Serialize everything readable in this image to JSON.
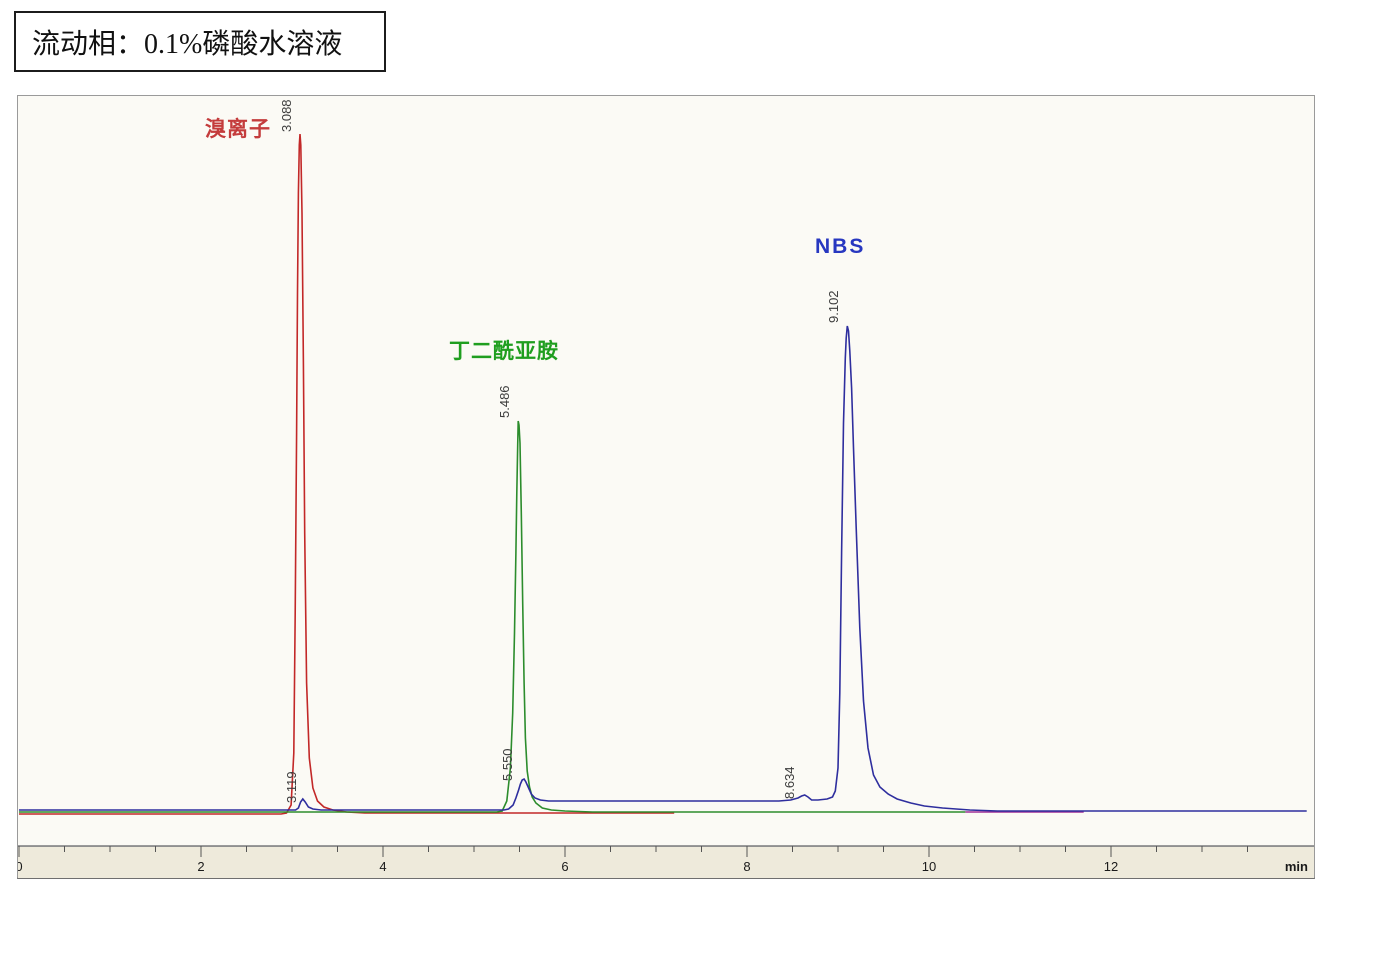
{
  "header": {
    "mobile_phase": "流动相：0.1%磷酸水溶液"
  },
  "chart_data": {
    "type": "line",
    "title": "",
    "xlabel": "min",
    "ylabel": "",
    "x_axis": {
      "range_min": 0,
      "range_max": 14.2,
      "minor_tick_step": 0.5,
      "labeled_tick_step": 2,
      "tick_labels": [
        "0",
        "2",
        "4",
        "6",
        "8",
        "10",
        "12"
      ],
      "unit_label": "min",
      "grid": "off"
    },
    "legend_position": "none",
    "series": [
      {
        "id": "bromide",
        "name": "溴离子",
        "color": "#c22828",
        "main_peak_rt_min": 3.088,
        "points": [
          [
            0,
            -1
          ],
          [
            2.88,
            -1
          ],
          [
            2.94,
            0
          ],
          [
            2.99,
            8
          ],
          [
            3.02,
            60
          ],
          [
            3.035,
            200
          ],
          [
            3.05,
            380
          ],
          [
            3.06,
            520
          ],
          [
            3.07,
            620
          ],
          [
            3.08,
            668
          ],
          [
            3.088,
            679
          ],
          [
            3.097,
            668
          ],
          [
            3.11,
            600
          ],
          [
            3.125,
            450
          ],
          [
            3.14,
            280
          ],
          [
            3.16,
            130
          ],
          [
            3.19,
            55
          ],
          [
            3.23,
            25
          ],
          [
            3.28,
            12
          ],
          [
            3.35,
            6
          ],
          [
            3.45,
            3
          ],
          [
            3.6,
            1
          ],
          [
            3.8,
            0
          ],
          [
            5.0,
            0
          ],
          [
            7.2,
            0
          ]
        ]
      },
      {
        "id": "succinimide",
        "name": "丁二酰亚胺",
        "color": "#2c8c2c",
        "main_peak_rt_min": 5.486,
        "points": [
          [
            0,
            1
          ],
          [
            5.25,
            1
          ],
          [
            5.31,
            2
          ],
          [
            5.36,
            12
          ],
          [
            5.4,
            45
          ],
          [
            5.425,
            100
          ],
          [
            5.445,
            180
          ],
          [
            5.46,
            260
          ],
          [
            5.47,
            320
          ],
          [
            5.48,
            368
          ],
          [
            5.486,
            392
          ],
          [
            5.494,
            388
          ],
          [
            5.505,
            370
          ],
          [
            5.52,
            300
          ],
          [
            5.535,
            210
          ],
          [
            5.55,
            130
          ],
          [
            5.565,
            75
          ],
          [
            5.585,
            42
          ],
          [
            5.61,
            26
          ],
          [
            5.64,
            16
          ],
          [
            5.68,
            10
          ],
          [
            5.75,
            5
          ],
          [
            5.85,
            3
          ],
          [
            6.0,
            2
          ],
          [
            6.3,
            1
          ],
          [
            10.4,
            1
          ]
        ]
      },
      {
        "id": "baseline-segment",
        "name": "",
        "color": "#a03098",
        "points": [
          [
            10.4,
            1
          ],
          [
            11.7,
            1
          ]
        ]
      },
      {
        "id": "nbs",
        "name": "NBS",
        "color": "#2e2e9e",
        "main_peak_rt_min": 9.102,
        "points": [
          [
            0,
            3
          ],
          [
            3.04,
            3
          ],
          [
            3.07,
            5
          ],
          [
            3.095,
            11
          ],
          [
            3.119,
            14
          ],
          [
            3.145,
            11
          ],
          [
            3.18,
            6
          ],
          [
            3.23,
            4
          ],
          [
            3.32,
            3
          ],
          [
            5.33,
            3
          ],
          [
            5.38,
            4
          ],
          [
            5.43,
            8
          ],
          [
            5.46,
            15
          ],
          [
            5.49,
            23
          ],
          [
            5.51,
            29
          ],
          [
            5.53,
            33
          ],
          [
            5.55,
            34
          ],
          [
            5.57,
            31
          ],
          [
            5.6,
            25
          ],
          [
            5.63,
            19
          ],
          [
            5.67,
            15
          ],
          [
            5.73,
            13
          ],
          [
            5.82,
            12
          ],
          [
            6.1,
            12
          ],
          [
            7.6,
            12
          ],
          [
            8.35,
            12
          ],
          [
            8.48,
            13
          ],
          [
            8.56,
            15
          ],
          [
            8.6,
            17
          ],
          [
            8.634,
            18
          ],
          [
            8.67,
            16
          ],
          [
            8.71,
            13
          ],
          [
            8.78,
            13
          ],
          [
            8.88,
            14
          ],
          [
            8.94,
            16
          ],
          [
            8.97,
            22
          ],
          [
            9.0,
            45
          ],
          [
            9.02,
            120
          ],
          [
            9.04,
            260
          ],
          [
            9.06,
            390
          ],
          [
            9.08,
            455
          ],
          [
            9.09,
            475
          ],
          [
            9.102,
            487
          ],
          [
            9.115,
            482
          ],
          [
            9.13,
            462
          ],
          [
            9.15,
            425
          ],
          [
            9.17,
            365
          ],
          [
            9.2,
            285
          ],
          [
            9.24,
            185
          ],
          [
            9.28,
            112
          ],
          [
            9.33,
            65
          ],
          [
            9.39,
            38
          ],
          [
            9.46,
            26
          ],
          [
            9.55,
            19
          ],
          [
            9.65,
            14
          ],
          [
            9.8,
            10
          ],
          [
            9.95,
            7
          ],
          [
            10.15,
            5
          ],
          [
            10.45,
            3
          ],
          [
            10.75,
            2
          ],
          [
            14.15,
            2
          ]
        ]
      }
    ],
    "peak_annotations": [
      {
        "text": "3.088",
        "series": "bromide"
      },
      {
        "text": "3.119",
        "series": "nbs"
      },
      {
        "text": "5.486",
        "series": "succinimide"
      },
      {
        "text": "5.550",
        "series": "nbs"
      },
      {
        "text": "8.634",
        "series": "nbs"
      },
      {
        "text": "9.102",
        "series": "nbs"
      }
    ],
    "compound_labels": [
      {
        "text": "溴离子",
        "color": "#c43c3c"
      },
      {
        "text": "丁二酰亚胺",
        "color": "#1f9e1f"
      },
      {
        "text": "NBS",
        "color": "#2737c0"
      }
    ]
  }
}
